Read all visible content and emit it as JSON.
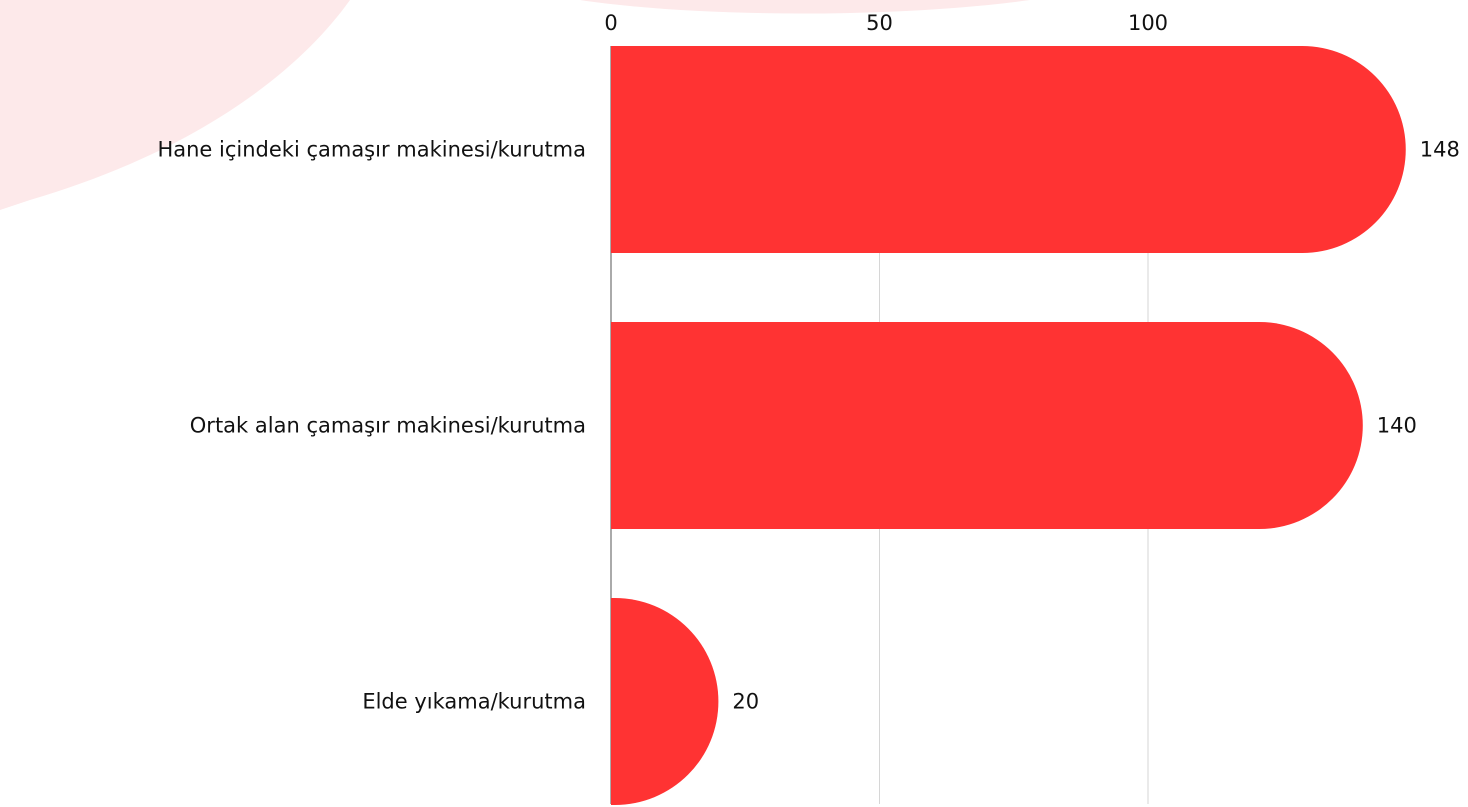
{
  "chart_data": {
    "type": "bar",
    "orientation": "horizontal",
    "categories": [
      "Hane içindeki çamaşır makinesi/kurutma",
      "Ortak alan çamaşır makinesi/kurutma",
      "Elde yıkama/kurutma"
    ],
    "values": [
      148,
      140,
      20
    ],
    "x_ticks": [
      0,
      50,
      100
    ],
    "xlim": [
      0,
      150
    ],
    "title": "",
    "xlabel": "",
    "ylabel": "",
    "grid": true,
    "legend": "none",
    "axis_position": "top",
    "bar_color": "#ff3333",
    "gridline_color": "#d6d6d6",
    "background_shape_color": "#fde9ea"
  }
}
